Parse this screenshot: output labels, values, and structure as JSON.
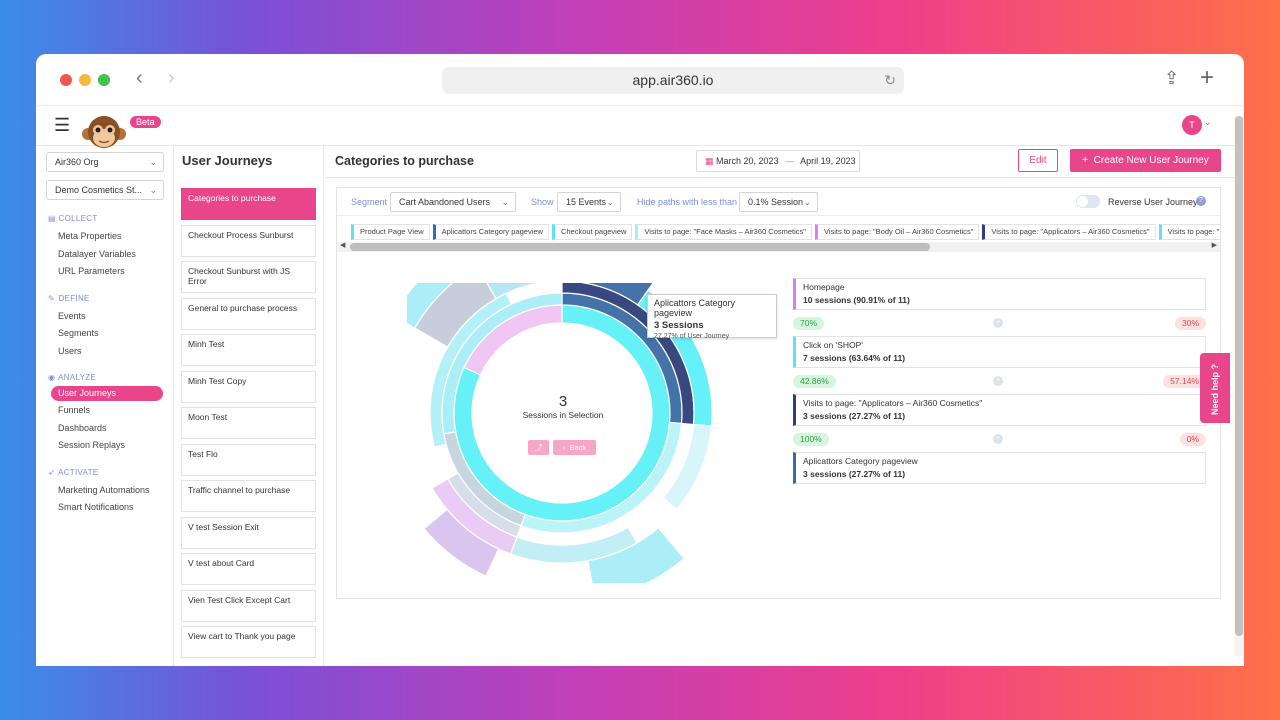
{
  "browser": {
    "url": "app.air360.io"
  },
  "header": {
    "beta": "Beta",
    "avatar_initial": "T"
  },
  "sidebar": {
    "org": "Air360 Org",
    "site": "Demo Cosmetics St...",
    "sections": [
      {
        "title": "COLLECT",
        "icon": "document-icon",
        "items": [
          "Meta Properties",
          "Datalayer Variables",
          "URL Parameters"
        ]
      },
      {
        "title": "DEFINE",
        "icon": "pencil-icon",
        "items": [
          "Events",
          "Segments",
          "Users"
        ]
      },
      {
        "title": "ANALYZE",
        "icon": "eye-icon",
        "items": [
          "User Journeys",
          "Funnels",
          "Dashboards",
          "Session Replays"
        ]
      },
      {
        "title": "ACTIVATE",
        "icon": "rocket-icon",
        "items": [
          "Marketing Automations",
          "Smart Notifications"
        ]
      }
    ],
    "active_item": "User Journeys"
  },
  "journeys": {
    "title": "User Journeys",
    "items": [
      "Categories to purchase",
      "Checkout Process Sunburst",
      "Checkout Sunburst with JS Error",
      "General to purchase process",
      "Minh Test",
      "Minh Test Copy",
      "Moon Test",
      "Test Flo",
      "Traffic channel to purchase",
      "V test Session Exit",
      "V test about Card",
      "Vien Test Click Except Cart",
      "View cart to Thank you page"
    ]
  },
  "main": {
    "title": "Categories to purchase",
    "date_from": "March 20, 2023",
    "date_to": "April 19, 2023",
    "edit_label": "Edit",
    "create_label": "Create New User Journey"
  },
  "filters": {
    "segment_label": "Segment",
    "segment_value": "Cart Abandoned Users",
    "show_label": "Show",
    "show_value": "15 Events",
    "hide_label": "Hide paths with less than",
    "hide_value": "0.1% Session",
    "reverse_label": "Reverse User Journey"
  },
  "chips": [
    {
      "label": "Product Page View",
      "color": "#5de3f5"
    },
    {
      "label": "Aplicattors Category pageview",
      "color": "#3b6ba5"
    },
    {
      "label": "Checkout pageview",
      "color": "#5de3f5"
    },
    {
      "label": "Visits to page: \"Face Masks – Air360 Cosmetics\"",
      "color": "#a8eef7"
    },
    {
      "label": "Visits to page: \"Body Oil – Air360 Cosmetics\"",
      "color": "#d57ff0"
    },
    {
      "label": "Visits to page: \"Applicators – Air360 Cosmetics\"",
      "color": "#2e3f7a"
    },
    {
      "label": "Visits to page: \"",
      "color": "#5de3f5"
    }
  ],
  "tooltip": {
    "name": "Aplicattors Category pageview",
    "sessions": "3 Sessions",
    "share": "27.27% of User Journey"
  },
  "center": {
    "count": "3",
    "label": "Sessions in Selection",
    "back": "Back"
  },
  "steps": [
    {
      "name": "Homepage",
      "sessions": "10 sessions (90.91% of 11)",
      "color": "#d57ff0",
      "continue": "70%",
      "drop": "30%"
    },
    {
      "name": "Click on 'SHOP'",
      "sessions": "7 sessions (63.64% of 11)",
      "color": "#5de3f5",
      "continue": "42.86%",
      "drop": "57.14%"
    },
    {
      "name": "Visits to page: \"Applicators – Air360 Cosmetics\"",
      "sessions": "3 sessions (27.27% of 11)",
      "color": "#2e3f7a",
      "continue": "100%",
      "drop": "0%"
    },
    {
      "name": "Aplicattors Category pageview",
      "sessions": "3 sessions (27.27% of 11)",
      "color": "#3b6ba5"
    }
  ],
  "need_help": "Need help ?"
}
